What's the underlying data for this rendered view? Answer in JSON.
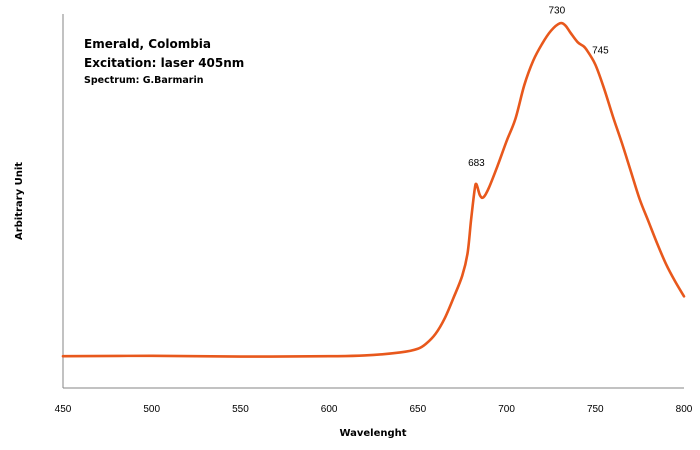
{
  "chart_data": {
    "type": "line",
    "title_lines": [
      "Emerald, Colombia",
      "Excitation: laser 405nm"
    ],
    "subtitle": "Spectrum: G.Barmarin",
    "xlabel": "Wavelenght",
    "ylabel": "Arbitrary Unit",
    "xlim": [
      450,
      800
    ],
    "ylim": [
      0,
      100
    ],
    "x_ticks": [
      "450",
      "500",
      "550",
      "600",
      "650",
      "700",
      "750",
      "800"
    ],
    "grid": false,
    "line_color": "#E8581C",
    "series": [
      {
        "x": [
          450,
          500,
          550,
          600,
          620,
          640,
          650,
          655,
          660,
          665,
          670,
          675,
          678,
          680,
          682,
          683,
          685,
          687,
          690,
          695,
          700,
          705,
          710,
          715,
          720,
          725,
          730,
          733,
          736,
          740,
          743,
          745,
          750,
          755,
          760,
          765,
          770,
          775,
          780,
          785,
          790,
          795,
          800
        ],
        "y": [
          8.5,
          8.6,
          8.4,
          8.5,
          8.7,
          9.5,
          10.5,
          12.0,
          14.5,
          18.5,
          24.0,
          30.0,
          36.0,
          45.0,
          53.0,
          54.5,
          51.5,
          51.0,
          53.5,
          59.5,
          66.0,
          72.0,
          81.0,
          87.5,
          92.0,
          95.5,
          97.5,
          97.0,
          95.0,
          92.5,
          91.5,
          90.5,
          86.5,
          80.0,
          72.5,
          65.5,
          58.0,
          50.5,
          44.5,
          38.5,
          33.0,
          28.5,
          24.5
        ]
      }
    ],
    "annotations": [
      {
        "text": "683",
        "x": 683,
        "y": 54.5
      },
      {
        "text": "730",
        "x": 730,
        "y": 97.5
      },
      {
        "text": "745",
        "x": 745,
        "y": 90.5
      }
    ]
  }
}
